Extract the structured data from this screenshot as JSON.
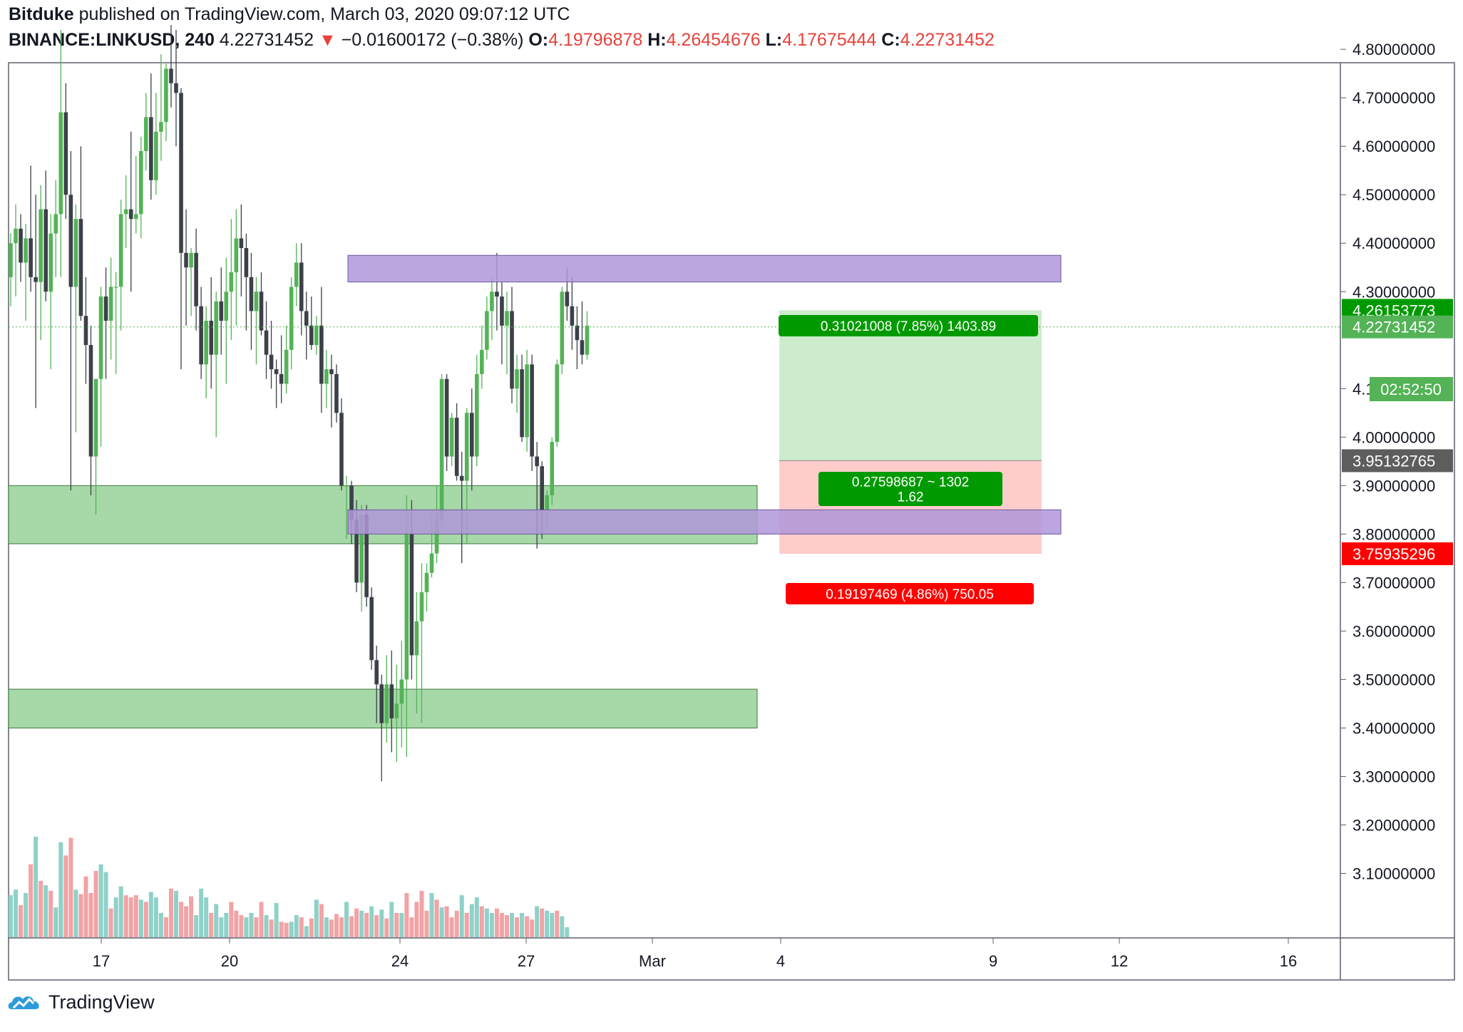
{
  "header": {
    "author": "Bitduke",
    "published_text": "published on TradingView.com, March 03, 2020 09:07:12 UTC",
    "symbol": "BINANCE:LINKUSD, 240",
    "last_price": "4.22731452",
    "change_arrow": "▼",
    "change": "−0.01600172 (−0.38%)",
    "o_label": "O:",
    "o_value": "4.19796878",
    "h_label": "H:",
    "h_value": "4.26454676",
    "l_label": "L:",
    "l_value": "4.17675444",
    "c_label": "C:",
    "c_value": "4.22731452"
  },
  "footer": {
    "brand": "TradingView",
    "logo_icon": "tradingview-cloud-icon"
  },
  "colors": {
    "up": "#53b356",
    "down": "#3c4049",
    "vol_up": "#8fd1c8",
    "vol_down": "#f2a3a5",
    "green_zone": "#a7d8a8",
    "purple_zone": "#b097d9",
    "profit": "#cdeccd",
    "loss": "#ffcccc",
    "label_green": "#009a00",
    "label_red": "#ff0000",
    "label_gray": "#5d5d5d",
    "price_green": "#53b356"
  },
  "chart_data": {
    "type": "candlestick",
    "timeframe": "240",
    "ylim": [
      3.04,
      4.86
    ],
    "y_ticks": [
      "4.80000000",
      "4.70000000",
      "4.60000000",
      "4.50000000",
      "4.40000000",
      "4.30000000",
      "4.10000000",
      "4.00000000",
      "3.90000000",
      "3.80000000",
      "3.70000000",
      "3.60000000",
      "3.50000000",
      "3.40000000",
      "3.30000000",
      "3.20000000",
      "3.10000000"
    ],
    "x_ticks": [
      "17",
      "20",
      "24",
      "27",
      "Mar",
      "4",
      "9",
      "12",
      "16"
    ],
    "candles": [
      {
        "o": 4.33,
        "h": 4.42,
        "l": 4.27,
        "c": 4.4
      },
      {
        "o": 4.4,
        "h": 4.48,
        "l": 4.29,
        "c": 4.43
      },
      {
        "o": 4.43,
        "h": 4.46,
        "l": 4.32,
        "c": 4.36
      },
      {
        "o": 4.36,
        "h": 4.44,
        "l": 4.24,
        "c": 4.41
      },
      {
        "o": 4.41,
        "h": 4.56,
        "l": 4.3,
        "c": 4.33
      },
      {
        "o": 4.33,
        "h": 4.5,
        "l": 4.06,
        "c": 4.32
      },
      {
        "o": 4.32,
        "h": 4.52,
        "l": 4.2,
        "c": 4.47
      },
      {
        "o": 4.47,
        "h": 4.55,
        "l": 4.28,
        "c": 4.3
      },
      {
        "o": 4.3,
        "h": 4.46,
        "l": 4.14,
        "c": 4.42
      },
      {
        "o": 4.42,
        "h": 4.53,
        "l": 4.33,
        "c": 4.46
      },
      {
        "o": 4.46,
        "h": 4.84,
        "l": 4.33,
        "c": 4.67
      },
      {
        "o": 4.67,
        "h": 4.73,
        "l": 4.45,
        "c": 4.5
      },
      {
        "o": 4.5,
        "h": 4.59,
        "l": 3.89,
        "c": 4.31
      },
      {
        "o": 4.31,
        "h": 4.48,
        "l": 4.01,
        "c": 4.45
      },
      {
        "o": 4.45,
        "h": 4.6,
        "l": 4.24,
        "c": 4.25
      },
      {
        "o": 4.25,
        "h": 4.33,
        "l": 4.11,
        "c": 4.19
      },
      {
        "o": 4.19,
        "h": 4.23,
        "l": 3.88,
        "c": 3.96
      },
      {
        "o": 3.96,
        "h": 4.11,
        "l": 3.84,
        "c": 4.12
      },
      {
        "o": 4.12,
        "h": 4.31,
        "l": 3.98,
        "c": 4.29
      },
      {
        "o": 4.29,
        "h": 4.35,
        "l": 4.12,
        "c": 4.24
      },
      {
        "o": 4.24,
        "h": 4.37,
        "l": 4.16,
        "c": 4.31
      },
      {
        "o": 4.31,
        "h": 4.34,
        "l": 4.13,
        "c": 4.31
      },
      {
        "o": 4.31,
        "h": 4.49,
        "l": 4.22,
        "c": 4.46
      },
      {
        "o": 4.46,
        "h": 4.54,
        "l": 4.39,
        "c": 4.47
      },
      {
        "o": 4.47,
        "h": 4.63,
        "l": 4.3,
        "c": 4.45
      },
      {
        "o": 4.45,
        "h": 4.58,
        "l": 4.42,
        "c": 4.46
      },
      {
        "o": 4.46,
        "h": 4.62,
        "l": 4.41,
        "c": 4.59
      },
      {
        "o": 4.59,
        "h": 4.71,
        "l": 4.55,
        "c": 4.66
      },
      {
        "o": 4.66,
        "h": 4.75,
        "l": 4.49,
        "c": 4.53
      },
      {
        "o": 4.53,
        "h": 4.71,
        "l": 4.5,
        "c": 4.63
      },
      {
        "o": 4.63,
        "h": 4.79,
        "l": 4.57,
        "c": 4.65
      },
      {
        "o": 4.65,
        "h": 4.77,
        "l": 4.61,
        "c": 4.76
      },
      {
        "o": 4.76,
        "h": 4.85,
        "l": 4.68,
        "c": 4.73
      },
      {
        "o": 4.73,
        "h": 4.84,
        "l": 4.6,
        "c": 4.71
      },
      {
        "o": 4.71,
        "h": 4.72,
        "l": 4.14,
        "c": 4.38
      },
      {
        "o": 4.38,
        "h": 4.47,
        "l": 4.23,
        "c": 4.35
      },
      {
        "o": 4.35,
        "h": 4.39,
        "l": 4.25,
        "c": 4.38
      },
      {
        "o": 4.38,
        "h": 4.43,
        "l": 4.22,
        "c": 4.27
      },
      {
        "o": 4.27,
        "h": 4.31,
        "l": 4.12,
        "c": 4.15
      },
      {
        "o": 4.15,
        "h": 4.27,
        "l": 4.08,
        "c": 4.24
      },
      {
        "o": 4.24,
        "h": 4.33,
        "l": 4.1,
        "c": 4.17
      },
      {
        "o": 4.17,
        "h": 4.3,
        "l": 4.0,
        "c": 4.28
      },
      {
        "o": 4.28,
        "h": 4.35,
        "l": 4.17,
        "c": 4.24
      },
      {
        "o": 4.24,
        "h": 4.37,
        "l": 4.11,
        "c": 4.3
      },
      {
        "o": 4.3,
        "h": 4.45,
        "l": 4.2,
        "c": 4.34
      },
      {
        "o": 4.34,
        "h": 4.47,
        "l": 4.23,
        "c": 4.41
      },
      {
        "o": 4.41,
        "h": 4.48,
        "l": 4.29,
        "c": 4.39
      },
      {
        "o": 4.39,
        "h": 4.42,
        "l": 4.22,
        "c": 4.33
      },
      {
        "o": 4.33,
        "h": 4.38,
        "l": 4.18,
        "c": 4.26
      },
      {
        "o": 4.26,
        "h": 4.33,
        "l": 4.15,
        "c": 4.3
      },
      {
        "o": 4.3,
        "h": 4.34,
        "l": 4.21,
        "c": 4.22
      },
      {
        "o": 4.22,
        "h": 4.28,
        "l": 4.12,
        "c": 4.17
      },
      {
        "o": 4.17,
        "h": 4.24,
        "l": 4.1,
        "c": 4.14
      },
      {
        "o": 4.14,
        "h": 4.16,
        "l": 4.06,
        "c": 4.13
      },
      {
        "o": 4.13,
        "h": 4.21,
        "l": 4.07,
        "c": 4.11
      },
      {
        "o": 4.11,
        "h": 4.23,
        "l": 4.09,
        "c": 4.18
      },
      {
        "o": 4.18,
        "h": 4.33,
        "l": 4.14,
        "c": 4.31
      },
      {
        "o": 4.31,
        "h": 4.4,
        "l": 4.27,
        "c": 4.36
      },
      {
        "o": 4.36,
        "h": 4.4,
        "l": 4.21,
        "c": 4.26
      },
      {
        "o": 4.26,
        "h": 4.3,
        "l": 4.16,
        "c": 4.23
      },
      {
        "o": 4.23,
        "h": 4.29,
        "l": 4.18,
        "c": 4.19
      },
      {
        "o": 4.19,
        "h": 4.25,
        "l": 4.17,
        "c": 4.23
      },
      {
        "o": 4.23,
        "h": 4.31,
        "l": 4.05,
        "c": 4.11
      },
      {
        "o": 4.11,
        "h": 4.18,
        "l": 4.06,
        "c": 4.14
      },
      {
        "o": 4.14,
        "h": 4.17,
        "l": 4.02,
        "c": 4.13
      },
      {
        "o": 4.13,
        "h": 4.15,
        "l": 4.03,
        "c": 4.05
      },
      {
        "o": 4.05,
        "h": 4.08,
        "l": 3.89,
        "c": 3.9
      },
      {
        "o": 3.9,
        "h": 3.92,
        "l": 3.79,
        "c": 3.9
      },
      {
        "o": 3.9,
        "h": 3.91,
        "l": 3.78,
        "c": 3.83
      },
      {
        "o": 3.83,
        "h": 3.87,
        "l": 3.68,
        "c": 3.7
      },
      {
        "o": 3.7,
        "h": 3.86,
        "l": 3.64,
        "c": 3.84
      },
      {
        "o": 3.84,
        "h": 3.86,
        "l": 3.65,
        "c": 3.67
      },
      {
        "o": 3.67,
        "h": 3.69,
        "l": 3.52,
        "c": 3.54
      },
      {
        "o": 3.54,
        "h": 3.57,
        "l": 3.41,
        "c": 3.49
      },
      {
        "o": 3.49,
        "h": 3.51,
        "l": 3.29,
        "c": 3.41
      },
      {
        "o": 3.41,
        "h": 3.55,
        "l": 3.37,
        "c": 3.49
      },
      {
        "o": 3.49,
        "h": 3.56,
        "l": 3.35,
        "c": 3.42
      },
      {
        "o": 3.42,
        "h": 3.53,
        "l": 3.33,
        "c": 3.45
      },
      {
        "o": 3.45,
        "h": 3.58,
        "l": 3.36,
        "c": 3.5
      },
      {
        "o": 3.5,
        "h": 3.88,
        "l": 3.34,
        "c": 3.8
      },
      {
        "o": 3.8,
        "h": 3.87,
        "l": 3.5,
        "c": 3.55
      },
      {
        "o": 3.55,
        "h": 3.68,
        "l": 3.43,
        "c": 3.62
      },
      {
        "o": 3.62,
        "h": 3.74,
        "l": 3.41,
        "c": 3.68
      },
      {
        "o": 3.68,
        "h": 3.74,
        "l": 3.64,
        "c": 3.72
      },
      {
        "o": 3.72,
        "h": 3.84,
        "l": 3.71,
        "c": 3.76
      },
      {
        "o": 3.76,
        "h": 3.9,
        "l": 3.74,
        "c": 3.83
      },
      {
        "o": 3.83,
        "h": 4.13,
        "l": 3.82,
        "c": 4.12
      },
      {
        "o": 4.12,
        "h": 4.13,
        "l": 3.93,
        "c": 3.96
      },
      {
        "o": 3.96,
        "h": 4.05,
        "l": 3.94,
        "c": 4.04
      },
      {
        "o": 4.04,
        "h": 4.07,
        "l": 3.91,
        "c": 3.92
      },
      {
        "o": 3.92,
        "h": 3.97,
        "l": 3.74,
        "c": 3.91
      },
      {
        "o": 3.91,
        "h": 4.06,
        "l": 3.78,
        "c": 4.05
      },
      {
        "o": 4.05,
        "h": 4.1,
        "l": 3.89,
        "c": 3.96
      },
      {
        "o": 3.96,
        "h": 4.17,
        "l": 3.94,
        "c": 4.13
      },
      {
        "o": 4.13,
        "h": 4.23,
        "l": 4.1,
        "c": 4.18
      },
      {
        "o": 4.18,
        "h": 4.29,
        "l": 4.16,
        "c": 4.26
      },
      {
        "o": 4.26,
        "h": 4.33,
        "l": 4.2,
        "c": 4.3
      },
      {
        "o": 4.3,
        "h": 4.38,
        "l": 4.22,
        "c": 4.29
      },
      {
        "o": 4.29,
        "h": 4.32,
        "l": 4.15,
        "c": 4.23
      },
      {
        "o": 4.23,
        "h": 4.3,
        "l": 4.13,
        "c": 4.26
      },
      {
        "o": 4.26,
        "h": 4.31,
        "l": 4.07,
        "c": 4.1
      },
      {
        "o": 4.1,
        "h": 4.17,
        "l": 4.05,
        "c": 4.14
      },
      {
        "o": 4.14,
        "h": 4.17,
        "l": 3.99,
        "c": 4.0
      },
      {
        "o": 4.0,
        "h": 4.18,
        "l": 3.97,
        "c": 4.15
      },
      {
        "o": 4.15,
        "h": 4.17,
        "l": 3.93,
        "c": 3.96
      },
      {
        "o": 3.96,
        "h": 3.99,
        "l": 3.77,
        "c": 3.94
      },
      {
        "o": 3.94,
        "h": 3.95,
        "l": 3.79,
        "c": 3.85
      },
      {
        "o": 3.85,
        "h": 3.89,
        "l": 3.81,
        "c": 3.88
      },
      {
        "o": 3.88,
        "h": 4.0,
        "l": 3.86,
        "c": 3.99
      },
      {
        "o": 3.99,
        "h": 4.16,
        "l": 3.98,
        "c": 4.15
      },
      {
        "o": 4.15,
        "h": 4.31,
        "l": 4.13,
        "c": 4.3
      },
      {
        "o": 4.3,
        "h": 4.35,
        "l": 4.24,
        "c": 4.27
      },
      {
        "o": 4.27,
        "h": 4.33,
        "l": 4.18,
        "c": 4.23
      },
      {
        "o": 4.23,
        "h": 4.27,
        "l": 4.14,
        "c": 4.2
      },
      {
        "o": 4.2,
        "h": 4.28,
        "l": 4.15,
        "c": 4.17
      },
      {
        "o": 4.17,
        "h": 4.26,
        "l": 4.16,
        "c": 4.23
      }
    ],
    "volume": [
      {
        "v": 0.38,
        "up": true
      },
      {
        "v": 0.43,
        "up": true
      },
      {
        "v": 0.29,
        "up": false
      },
      {
        "v": 0.4,
        "up": true
      },
      {
        "v": 0.66,
        "up": false
      },
      {
        "v": 0.91,
        "up": true
      },
      {
        "v": 0.51,
        "up": false
      },
      {
        "v": 0.47,
        "up": true
      },
      {
        "v": 0.42,
        "up": false
      },
      {
        "v": 0.27,
        "up": true
      },
      {
        "v": 0.86,
        "up": true
      },
      {
        "v": 0.74,
        "up": false
      },
      {
        "v": 0.9,
        "up": false
      },
      {
        "v": 0.43,
        "up": true
      },
      {
        "v": 0.39,
        "up": false
      },
      {
        "v": 0.55,
        "up": false
      },
      {
        "v": 0.4,
        "up": false
      },
      {
        "v": 0.6,
        "up": false
      },
      {
        "v": 0.66,
        "up": true
      },
      {
        "v": 0.59,
        "up": true
      },
      {
        "v": 0.26,
        "up": false
      },
      {
        "v": 0.36,
        "up": true
      },
      {
        "v": 0.46,
        "up": true
      },
      {
        "v": 0.38,
        "up": false
      },
      {
        "v": 0.36,
        "up": false
      },
      {
        "v": 0.38,
        "up": false
      },
      {
        "v": 0.34,
        "up": true
      },
      {
        "v": 0.32,
        "up": false
      },
      {
        "v": 0.41,
        "up": true
      },
      {
        "v": 0.36,
        "up": true
      },
      {
        "v": 0.22,
        "up": true
      },
      {
        "v": 0.18,
        "up": false
      },
      {
        "v": 0.44,
        "up": false
      },
      {
        "v": 0.42,
        "up": true
      },
      {
        "v": 0.32,
        "up": false
      },
      {
        "v": 0.28,
        "up": false
      },
      {
        "v": 0.37,
        "up": false
      },
      {
        "v": 0.2,
        "up": true
      },
      {
        "v": 0.44,
        "up": true
      },
      {
        "v": 0.36,
        "up": true
      },
      {
        "v": 0.22,
        "up": false
      },
      {
        "v": 0.3,
        "up": true
      },
      {
        "v": 0.18,
        "up": true
      },
      {
        "v": 0.22,
        "up": true
      },
      {
        "v": 0.32,
        "up": false
      },
      {
        "v": 0.24,
        "up": false
      },
      {
        "v": 0.2,
        "up": false
      },
      {
        "v": 0.18,
        "up": true
      },
      {
        "v": 0.22,
        "up": true
      },
      {
        "v": 0.18,
        "up": false
      },
      {
        "v": 0.32,
        "up": false
      },
      {
        "v": 0.2,
        "up": true
      },
      {
        "v": 0.16,
        "up": false
      },
      {
        "v": 0.31,
        "up": true
      },
      {
        "v": 0.14,
        "up": false
      },
      {
        "v": 0.13,
        "up": false
      },
      {
        "v": 0.14,
        "up": true
      },
      {
        "v": 0.2,
        "up": true
      },
      {
        "v": 0.18,
        "up": false
      },
      {
        "v": 0.1,
        "up": true
      },
      {
        "v": 0.17,
        "up": false
      },
      {
        "v": 0.34,
        "up": true
      },
      {
        "v": 0.3,
        "up": false
      },
      {
        "v": 0.18,
        "up": true
      },
      {
        "v": 0.16,
        "up": false
      },
      {
        "v": 0.21,
        "up": false
      },
      {
        "v": 0.18,
        "up": false
      },
      {
        "v": 0.32,
        "up": true
      },
      {
        "v": 0.19,
        "up": false
      },
      {
        "v": 0.26,
        "up": false
      },
      {
        "v": 0.24,
        "up": true
      },
      {
        "v": 0.22,
        "up": false
      },
      {
        "v": 0.28,
        "up": true
      },
      {
        "v": 0.2,
        "up": false
      },
      {
        "v": 0.25,
        "up": true
      },
      {
        "v": 0.17,
        "up": false
      },
      {
        "v": 0.32,
        "up": true
      },
      {
        "v": 0.22,
        "up": false
      },
      {
        "v": 0.22,
        "up": true
      },
      {
        "v": 0.4,
        "up": false
      },
      {
        "v": 0.18,
        "up": false
      },
      {
        "v": 0.32,
        "up": false
      },
      {
        "v": 0.42,
        "up": false
      },
      {
        "v": 0.24,
        "up": false
      },
      {
        "v": 0.4,
        "up": true
      },
      {
        "v": 0.34,
        "up": false
      },
      {
        "v": 0.27,
        "up": true
      },
      {
        "v": 0.28,
        "up": false
      },
      {
        "v": 0.18,
        "up": false
      },
      {
        "v": 0.24,
        "up": false
      },
      {
        "v": 0.38,
        "up": true
      },
      {
        "v": 0.22,
        "up": false
      },
      {
        "v": 0.3,
        "up": true
      },
      {
        "v": 0.36,
        "up": true
      },
      {
        "v": 0.28,
        "up": false
      },
      {
        "v": 0.26,
        "up": true
      },
      {
        "v": 0.22,
        "up": true
      },
      {
        "v": 0.26,
        "up": false
      },
      {
        "v": 0.22,
        "up": false
      },
      {
        "v": 0.2,
        "up": false
      },
      {
        "v": 0.22,
        "up": true
      },
      {
        "v": 0.18,
        "up": false
      },
      {
        "v": 0.22,
        "up": true
      },
      {
        "v": 0.19,
        "up": false
      },
      {
        "v": 0.16,
        "up": false
      },
      {
        "v": 0.28,
        "up": true
      },
      {
        "v": 0.26,
        "up": false
      },
      {
        "v": 0.24,
        "up": true
      },
      {
        "v": 0.22,
        "up": true
      },
      {
        "v": 0.24,
        "up": false
      },
      {
        "v": 0.19,
        "up": true
      },
      {
        "v": 0.09,
        "up": true
      }
    ],
    "green_zones": [
      [
        3.78,
        3.9
      ],
      [
        3.4,
        3.48
      ]
    ],
    "purple_zones": [
      [
        4.32,
        4.375
      ],
      [
        3.8,
        3.85
      ]
    ],
    "position": {
      "entry": 3.95132765,
      "target": 4.26153773,
      "stop": 3.75935296,
      "target_label": "0.31021008 (7.85%) 1403.89",
      "ratio_label_line1": "0.27598687 ~ 1302",
      "ratio_label_line2": "1.62",
      "stop_label": "0.19197469 (4.86%) 750.05"
    },
    "price_labels": {
      "target": "4.26153773",
      "last": "4.22731452",
      "countdown": "02:52:50",
      "entry": "3.95132765",
      "stop": "3.75935296"
    }
  }
}
